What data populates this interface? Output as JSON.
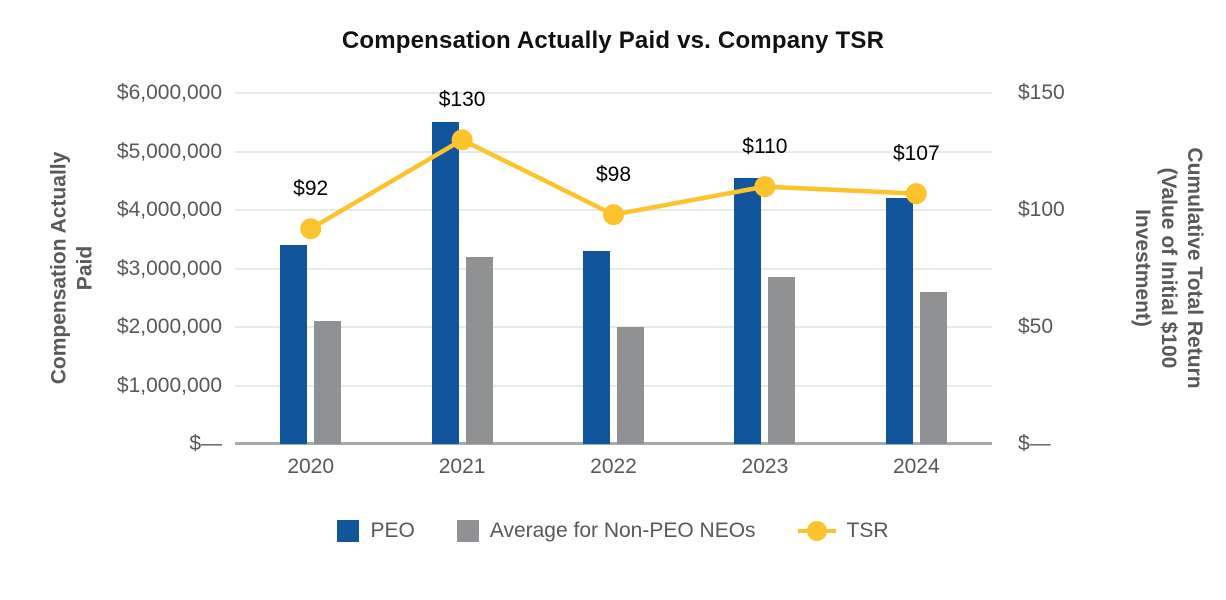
{
  "chart_data": {
    "type": "combo",
    "title": "Compensation Actually Paid vs. Company TSR",
    "categories": [
      "2020",
      "2021",
      "2022",
      "2023",
      "2024"
    ],
    "series": [
      {
        "name": "PEO",
        "type": "bar",
        "axis": "left",
        "color": "#11569d",
        "values": [
          3400000,
          5500000,
          3300000,
          4550000,
          4200000
        ]
      },
      {
        "name": "Average for Non-PEO NEOs",
        "type": "bar",
        "axis": "left",
        "color": "#8f9193",
        "values": [
          2100000,
          3200000,
          2000000,
          2850000,
          2600000
        ]
      },
      {
        "name": "TSR",
        "type": "line",
        "axis": "right",
        "color": "#fcc32d",
        "values": [
          92,
          130,
          98,
          110,
          107
        ],
        "point_labels": [
          "$92",
          "$130",
          "$98",
          "$110",
          "$107"
        ]
      }
    ],
    "left_axis": {
      "title_lines": [
        "Compensation Actually",
        "Paid"
      ],
      "tick_labels": [
        "$6,000,000",
        "$5,000,000",
        "$4,000,000",
        "$3,000,000",
        "$2,000,000",
        "$1,000,000",
        "$—"
      ],
      "min": 0,
      "max": 6000000
    },
    "right_axis": {
      "title_lines": [
        "Cumulative Total Return",
        "(Value of Initial $100",
        "Investment)"
      ],
      "tick_labels": [
        "$150",
        "$100",
        "$50",
        "$—"
      ],
      "min": 0,
      "max": 150
    },
    "grid": true,
    "legend_position": "bottom"
  },
  "colors": {
    "gridline": "#e9e9e9",
    "axis_line": "#a6a9ab",
    "tick_text": "#595959",
    "title_text": "#111111",
    "data_label_text": "#000000",
    "background": "#ffffff"
  }
}
